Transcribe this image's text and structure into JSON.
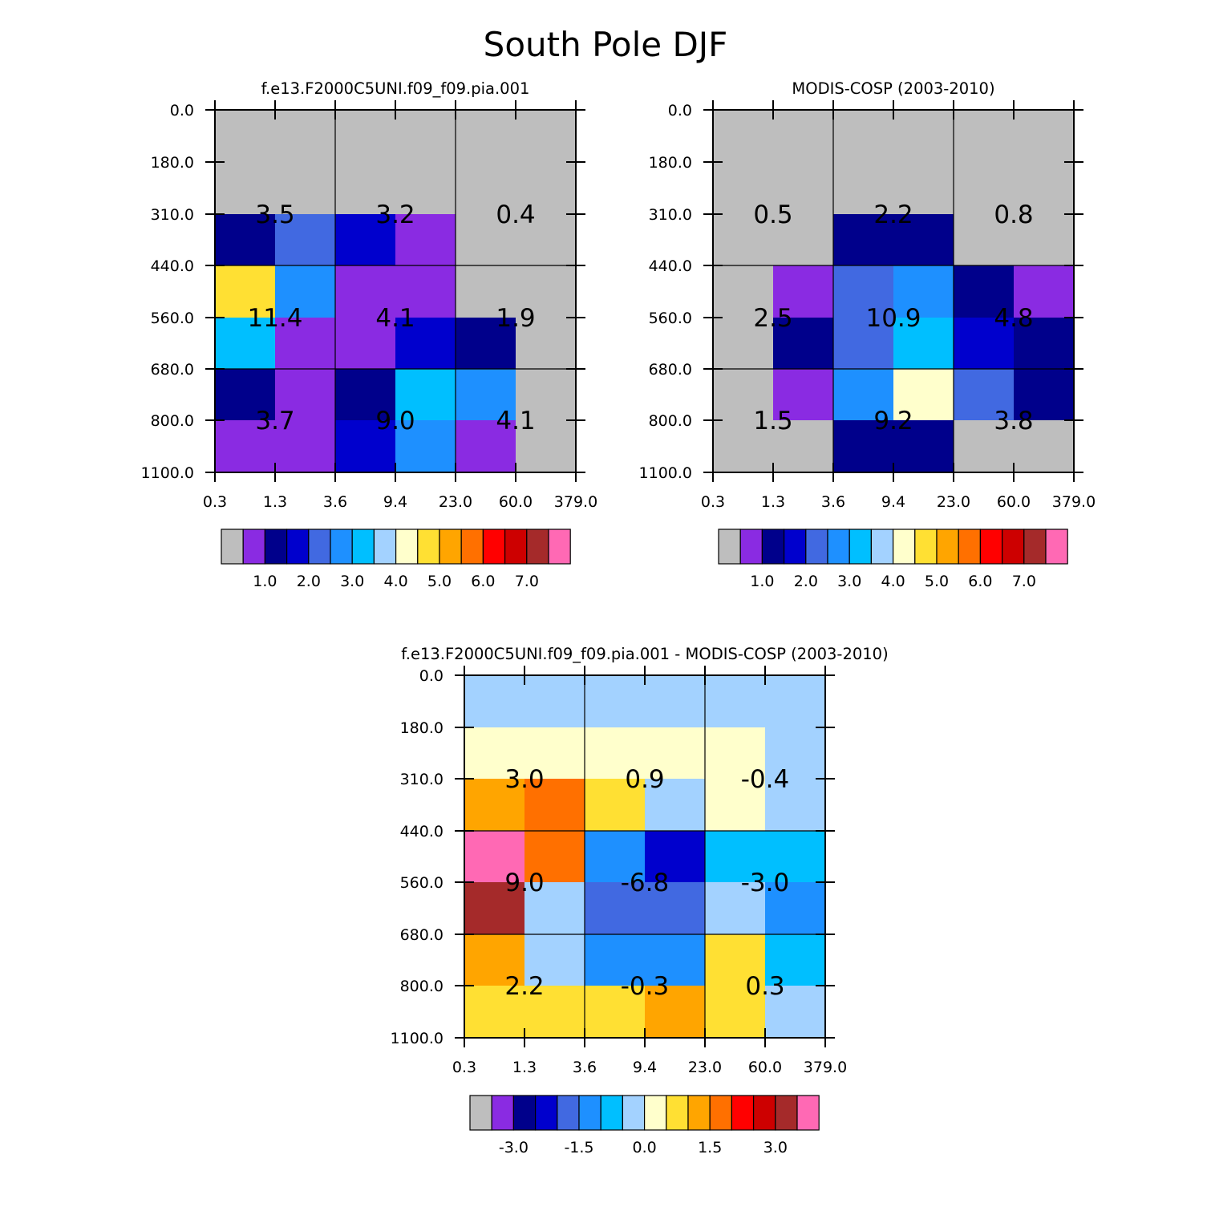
{
  "figure_title": "South Pole DJF",
  "chart_data": [
    {
      "type": "heatmap",
      "title": "f.e13.F2000C5UNI.f09_f09.pia.001",
      "x_tick_labels": [
        "0.3",
        "1.3",
        "3.6",
        "9.4",
        "23.0",
        "60.0",
        "379.0"
      ],
      "y_tick_labels": [
        "0.0",
        "180.0",
        "310.0",
        "440.0",
        "560.0",
        "680.0",
        "800.0",
        "1100.0"
      ],
      "cell_colors": [
        [
          "#BEBEBE",
          "#BEBEBE",
          "#BEBEBE",
          "#BEBEBE",
          "#BEBEBE",
          "#BEBEBE"
        ],
        [
          "#BEBEBE",
          "#BEBEBE",
          "#BEBEBE",
          "#BEBEBE",
          "#BEBEBE",
          "#BEBEBE"
        ],
        [
          "#00008B",
          "#4169E1",
          "#0000CD",
          "#8A2BE2",
          "#BEBEBE",
          "#BEBEBE"
        ],
        [
          "#FFE033",
          "#1E90FF",
          "#8A2BE2",
          "#8A2BE2",
          "#BEBEBE",
          "#BEBEBE"
        ],
        [
          "#00BFFF",
          "#8A2BE2",
          "#8A2BE2",
          "#0000CD",
          "#00008B",
          "#BEBEBE"
        ],
        [
          "#00008B",
          "#8A2BE2",
          "#00008B",
          "#00BFFF",
          "#1E90FF",
          "#BEBEBE"
        ],
        [
          "#8A2BE2",
          "#8A2BE2",
          "#0000CD",
          "#1E90FF",
          "#8A2BE2",
          "#BEBEBE"
        ]
      ],
      "block_values": [
        [
          "3.5",
          "3.2",
          "0.4"
        ],
        [
          "11.4",
          "4.1",
          "1.9"
        ],
        [
          "3.7",
          "9.0",
          "4.1"
        ]
      ],
      "colorbar": {
        "colors": [
          "#BEBEBE",
          "#8A2BE2",
          "#00008B",
          "#0000CD",
          "#4169E1",
          "#1E90FF",
          "#00BFFF",
          "#A3D2FF",
          "#FFFFCC",
          "#FFE033",
          "#FFA500",
          "#FF7000",
          "#FF0000",
          "#CD0000",
          "#A52A2A",
          "#FF69B4"
        ],
        "labels": [
          "1.0",
          "2.0",
          "3.0",
          "4.0",
          "5.0",
          "6.0",
          "7.0"
        ],
        "label_after_box": [
          1,
          3,
          5,
          7,
          9,
          11,
          13
        ]
      }
    },
    {
      "type": "heatmap",
      "title": "MODIS-COSP (2003-2010)",
      "x_tick_labels": [
        "0.3",
        "1.3",
        "3.6",
        "9.4",
        "23.0",
        "60.0",
        "379.0"
      ],
      "y_tick_labels": [
        "0.0",
        "180.0",
        "310.0",
        "440.0",
        "560.0",
        "680.0",
        "800.0",
        "1100.0"
      ],
      "cell_colors": [
        [
          "#BEBEBE",
          "#BEBEBE",
          "#BEBEBE",
          "#BEBEBE",
          "#BEBEBE",
          "#BEBEBE"
        ],
        [
          "#BEBEBE",
          "#BEBEBE",
          "#BEBEBE",
          "#BEBEBE",
          "#BEBEBE",
          "#BEBEBE"
        ],
        [
          "#BEBEBE",
          "#BEBEBE",
          "#00008B",
          "#00008B",
          "#BEBEBE",
          "#BEBEBE"
        ],
        [
          "#BEBEBE",
          "#8A2BE2",
          "#4169E1",
          "#1E90FF",
          "#00008B",
          "#8A2BE2"
        ],
        [
          "#BEBEBE",
          "#00008B",
          "#4169E1",
          "#00BFFF",
          "#0000CD",
          "#00008B"
        ],
        [
          "#BEBEBE",
          "#8A2BE2",
          "#1E90FF",
          "#FFFFCC",
          "#4169E1",
          "#00008B"
        ],
        [
          "#BEBEBE",
          "#BEBEBE",
          "#00008B",
          "#00008B",
          "#BEBEBE",
          "#BEBEBE"
        ]
      ],
      "block_values": [
        [
          "0.5",
          "2.2",
          "0.8"
        ],
        [
          "2.5",
          "10.9",
          "4.8"
        ],
        [
          "1.5",
          "9.2",
          "3.8"
        ]
      ],
      "colorbar": {
        "colors": [
          "#BEBEBE",
          "#8A2BE2",
          "#00008B",
          "#0000CD",
          "#4169E1",
          "#1E90FF",
          "#00BFFF",
          "#A3D2FF",
          "#FFFFCC",
          "#FFE033",
          "#FFA500",
          "#FF7000",
          "#FF0000",
          "#CD0000",
          "#A52A2A",
          "#FF69B4"
        ],
        "labels": [
          "1.0",
          "2.0",
          "3.0",
          "4.0",
          "5.0",
          "6.0",
          "7.0"
        ],
        "label_after_box": [
          1,
          3,
          5,
          7,
          9,
          11,
          13
        ]
      }
    },
    {
      "type": "heatmap",
      "title": "f.e13.F2000C5UNI.f09_f09.pia.001 - MODIS-COSP (2003-2010)",
      "x_tick_labels": [
        "0.3",
        "1.3",
        "3.6",
        "9.4",
        "23.0",
        "60.0",
        "379.0"
      ],
      "y_tick_labels": [
        "0.0",
        "180.0",
        "310.0",
        "440.0",
        "560.0",
        "680.0",
        "800.0",
        "1100.0"
      ],
      "cell_colors": [
        [
          "#A3D2FF",
          "#A3D2FF",
          "#A3D2FF",
          "#A3D2FF",
          "#A3D2FF",
          "#A3D2FF"
        ],
        [
          "#FFFFCC",
          "#FFFFCC",
          "#FFFFCC",
          "#FFFFCC",
          "#FFFFCC",
          "#A3D2FF"
        ],
        [
          "#FFA500",
          "#FF7000",
          "#FFE033",
          "#A3D2FF",
          "#FFFFCC",
          "#A3D2FF"
        ],
        [
          "#FF69B4",
          "#FF7000",
          "#1E90FF",
          "#0000CD",
          "#00BFFF",
          "#00BFFF"
        ],
        [
          "#A52A2A",
          "#A3D2FF",
          "#4169E1",
          "#4169E1",
          "#A3D2FF",
          "#1E90FF"
        ],
        [
          "#FFA500",
          "#A3D2FF",
          "#1E90FF",
          "#1E90FF",
          "#FFE033",
          "#00BFFF"
        ],
        [
          "#FFE033",
          "#FFE033",
          "#FFE033",
          "#FFA500",
          "#FFE033",
          "#A3D2FF"
        ]
      ],
      "block_values": [
        [
          "3.0",
          "0.9",
          "-0.4"
        ],
        [
          "9.0",
          "-6.8",
          "-3.0"
        ],
        [
          "2.2",
          "-0.3",
          "0.3"
        ]
      ],
      "colorbar": {
        "colors": [
          "#BEBEBE",
          "#8A2BE2",
          "#00008B",
          "#0000CD",
          "#4169E1",
          "#1E90FF",
          "#00BFFF",
          "#A3D2FF",
          "#FFFFCC",
          "#FFE033",
          "#FFA500",
          "#FF7000",
          "#FF0000",
          "#CD0000",
          "#A52A2A",
          "#FF69B4"
        ],
        "labels": [
          "-3.0",
          "-1.5",
          "0.0",
          "1.5",
          "3.0"
        ],
        "label_after_box": [
          1,
          4,
          7,
          10,
          13
        ]
      }
    }
  ]
}
